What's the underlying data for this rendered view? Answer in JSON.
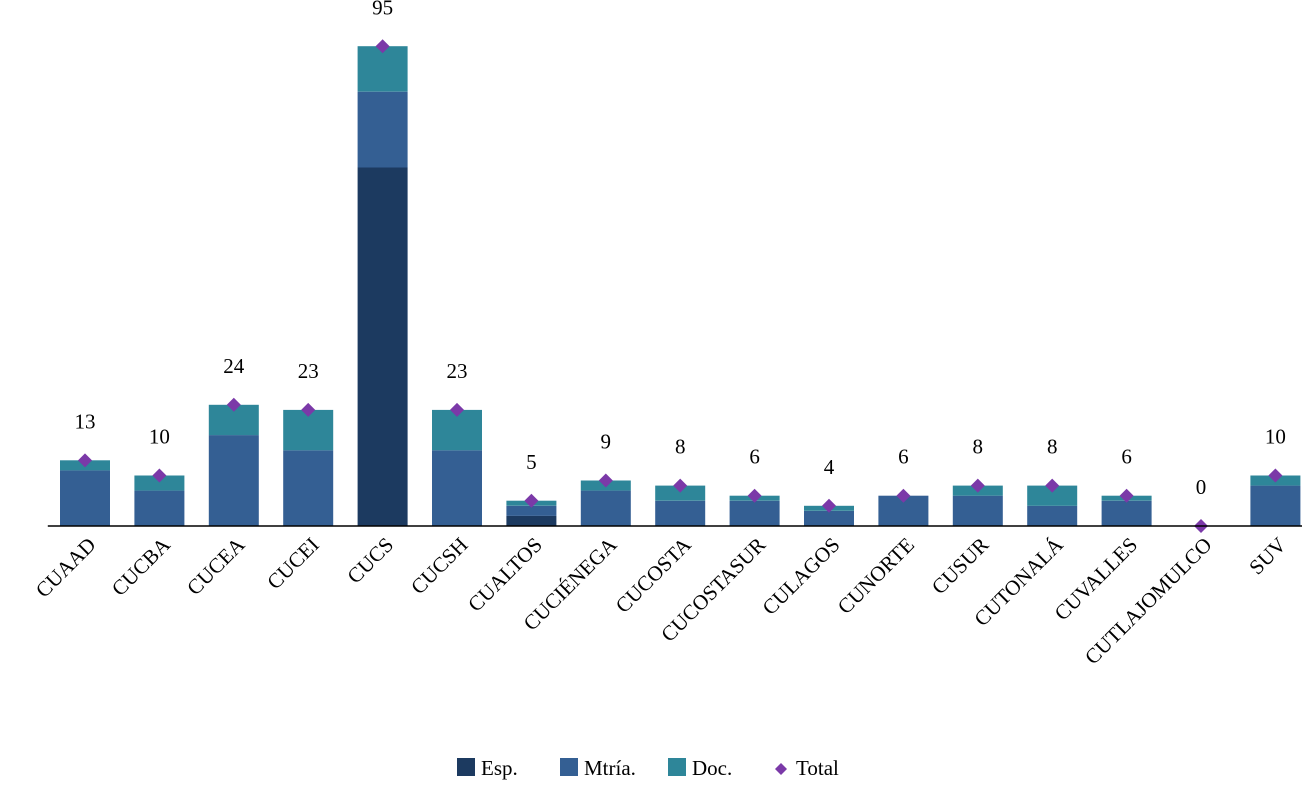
{
  "chart_data": {
    "type": "bar",
    "stacked": true,
    "categories": [
      "CUAAD",
      "CUCBA",
      "CUCEA",
      "CUCEI",
      "CUCS",
      "CUCSH",
      "CUALTOS",
      "CUCIÉNEGA",
      "CUCOSTA",
      "CUCOSTASUR",
      "CULAGOS",
      "CUNORTE",
      "CUSUR",
      "CUTONALÁ",
      "CUVALLES",
      "CUTLAJOMULCO",
      "SUV"
    ],
    "series": [
      {
        "name": "Esp.",
        "values": [
          0,
          0,
          0,
          0,
          71,
          0,
          2,
          0,
          0,
          0,
          0,
          0,
          0,
          0,
          0,
          0,
          0
        ]
      },
      {
        "name": "Mtría.",
        "values": [
          11,
          7,
          18,
          15,
          15,
          15,
          2,
          7,
          5,
          5,
          3,
          6,
          6,
          4,
          5,
          0,
          8
        ]
      },
      {
        "name": "Doc.",
        "values": [
          2,
          3,
          6,
          8,
          9,
          8,
          1,
          2,
          3,
          1,
          1,
          0,
          2,
          4,
          1,
          0,
          2
        ]
      }
    ],
    "total": {
      "name": "Total",
      "values": [
        13,
        10,
        24,
        23,
        95,
        23,
        5,
        9,
        8,
        6,
        4,
        6,
        8,
        8,
        6,
        0,
        10
      ]
    },
    "data_labels": [
      "13",
      "10",
      "24",
      "23",
      "95",
      "23",
      "5",
      "9",
      "8",
      "6",
      "4",
      "6",
      "8",
      "8",
      "6",
      "0",
      "10"
    ],
    "ylim": [
      0,
      100
    ],
    "grid": false,
    "legend": "bottom",
    "colors": {
      "Esp.": "#1c3a60",
      "Mtría.": "#345f93",
      "Doc.": "#2e8699",
      "Total": "#7b39a8",
      "axis": "#000000"
    }
  }
}
